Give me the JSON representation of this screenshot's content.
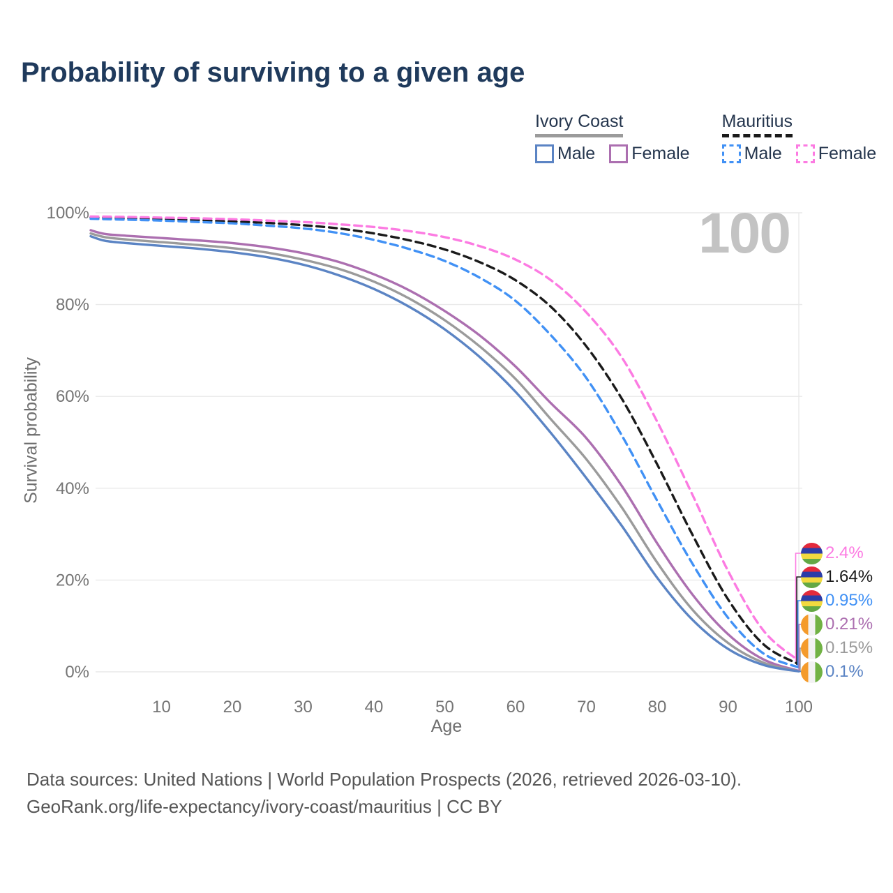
{
  "title": "Probability of surviving to a given age",
  "watermark": "100",
  "colors": {
    "title": "#1F3A5C",
    "legend_text": "#24354D",
    "tick": "#757575",
    "axis_title": "#6E6E6E",
    "grid": "#E9E9E9",
    "watermark": "#C3C3C3",
    "footer": "#565656",
    "ivory_coast_male": "#5B84C4",
    "ivory_coast_female": "#AC6FB0",
    "ivory_coast_both": "#9B9B9B",
    "mauritius_male": "#4191F5",
    "mauritius_female": "#FC7BE2",
    "mauritius_both": "#1A1A1A"
  },
  "legend": {
    "groups": [
      {
        "label": "Ivory Coast",
        "line_style": "solid",
        "underline_color": "#9B9B9B",
        "items": [
          {
            "label": "Male",
            "color": "#5B84C4",
            "dashed": false
          },
          {
            "label": "Female",
            "color": "#AC6FB0",
            "dashed": false
          }
        ]
      },
      {
        "label": "Mauritius",
        "line_style": "dashed",
        "underline_color": "#1A1A1A",
        "items": [
          {
            "label": "Male",
            "color": "#4191F5",
            "dashed": true
          },
          {
            "label": "Female",
            "color": "#FC7BE2",
            "dashed": true
          }
        ]
      }
    ]
  },
  "flags": {
    "mauritius": {
      "orientation": "horizontal",
      "colors": [
        "#E32A3C",
        "#2B3DA8",
        "#F2D93F",
        "#63A844"
      ]
    },
    "ivory_coast": {
      "orientation": "vertical",
      "colors": [
        "#F49B2B",
        "#F2F2F2",
        "#71B244"
      ]
    }
  },
  "chart_data": {
    "type": "line",
    "title": "Probability of surviving to a given age",
    "xlabel": "Age",
    "ylabel": "Survival probability",
    "xlim": [
      0,
      100
    ],
    "ylim": [
      0,
      100
    ],
    "grid": "horizontal, plus vertical line at age 100",
    "legend_position": "top-right",
    "x_ticks": [
      10,
      20,
      30,
      40,
      50,
      60,
      70,
      80,
      90,
      100
    ],
    "y_ticks": [
      "0%",
      "20%",
      "40%",
      "60%",
      "80%",
      "100%"
    ],
    "series": [
      {
        "id": "mauritius_both",
        "name": "Mauritius — Both sexes",
        "color": "#1A1A1A",
        "dashed": true,
        "end_label": "1.64%",
        "points": [
          [
            0,
            99.0
          ],
          [
            5,
            98.8
          ],
          [
            10,
            98.6
          ],
          [
            15,
            98.4
          ],
          [
            20,
            98.1
          ],
          [
            25,
            97.8
          ],
          [
            30,
            97.3
          ],
          [
            35,
            96.6
          ],
          [
            40,
            95.5
          ],
          [
            45,
            94.0
          ],
          [
            50,
            92.0
          ],
          [
            55,
            89.2
          ],
          [
            60,
            85.3
          ],
          [
            65,
            79.5
          ],
          [
            70,
            70.9
          ],
          [
            75,
            59.5
          ],
          [
            80,
            45.2
          ],
          [
            85,
            29.8
          ],
          [
            90,
            15.8
          ],
          [
            95,
            6.0
          ],
          [
            100,
            1.64
          ]
        ]
      },
      {
        "id": "mauritius_male",
        "name": "Mauritius — Male",
        "color": "#4191F5",
        "dashed": true,
        "end_label": "0.95%",
        "points": [
          [
            0,
            98.7
          ],
          [
            5,
            98.5
          ],
          [
            10,
            98.3
          ],
          [
            15,
            98.0
          ],
          [
            20,
            97.7
          ],
          [
            25,
            97.2
          ],
          [
            30,
            96.6
          ],
          [
            35,
            95.6
          ],
          [
            40,
            94.1
          ],
          [
            45,
            92.1
          ],
          [
            50,
            89.5
          ],
          [
            55,
            85.8
          ],
          [
            60,
            80.8
          ],
          [
            65,
            73.3
          ],
          [
            70,
            64.0
          ],
          [
            75,
            51.5
          ],
          [
            80,
            37.3
          ],
          [
            85,
            23.5
          ],
          [
            90,
            11.8
          ],
          [
            95,
            4.0
          ],
          [
            100,
            0.95
          ]
        ]
      },
      {
        "id": "mauritius_female",
        "name": "Mauritius — Female",
        "color": "#FC7BE2",
        "dashed": true,
        "end_label": "2.4%",
        "points": [
          [
            0,
            99.2
          ],
          [
            5,
            99.1
          ],
          [
            10,
            98.95
          ],
          [
            15,
            98.8
          ],
          [
            20,
            98.6
          ],
          [
            25,
            98.3
          ],
          [
            30,
            98.0
          ],
          [
            35,
            97.5
          ],
          [
            40,
            96.9
          ],
          [
            45,
            96.0
          ],
          [
            50,
            94.7
          ],
          [
            55,
            92.7
          ],
          [
            60,
            89.8
          ],
          [
            65,
            85.3
          ],
          [
            70,
            78.3
          ],
          [
            75,
            68.5
          ],
          [
            80,
            54.5
          ],
          [
            85,
            38.5
          ],
          [
            90,
            22.0
          ],
          [
            95,
            9.0
          ],
          [
            100,
            2.4
          ]
        ]
      },
      {
        "id": "ivory_coast_female",
        "name": "Ivory Coast — Female",
        "color": "#AC6FB0",
        "dashed": false,
        "end_label": "0.21%",
        "points": [
          [
            0,
            96.2
          ],
          [
            2,
            95.4
          ],
          [
            5,
            95.0
          ],
          [
            10,
            94.5
          ],
          [
            15,
            94.0
          ],
          [
            20,
            93.4
          ],
          [
            25,
            92.5
          ],
          [
            30,
            91.2
          ],
          [
            35,
            89.3
          ],
          [
            40,
            86.6
          ],
          [
            45,
            83.1
          ],
          [
            50,
            78.6
          ],
          [
            55,
            73.2
          ],
          [
            60,
            66.5
          ],
          [
            65,
            58.5
          ],
          [
            70,
            50.9
          ],
          [
            75,
            40.5
          ],
          [
            80,
            28.0
          ],
          [
            85,
            16.8
          ],
          [
            90,
            8.2
          ],
          [
            95,
            2.7
          ],
          [
            100,
            0.21
          ]
        ]
      },
      {
        "id": "ivory_coast_both",
        "name": "Ivory Coast — Both sexes",
        "color": "#9B9B9B",
        "dashed": false,
        "end_label": "0.15%",
        "points": [
          [
            0,
            95.5
          ],
          [
            2,
            94.7
          ],
          [
            5,
            94.2
          ],
          [
            10,
            93.6
          ],
          [
            15,
            93.0
          ],
          [
            20,
            92.3
          ],
          [
            25,
            91.3
          ],
          [
            30,
            89.8
          ],
          [
            35,
            87.8
          ],
          [
            40,
            85.0
          ],
          [
            45,
            81.3
          ],
          [
            50,
            76.6
          ],
          [
            55,
            70.8
          ],
          [
            60,
            63.8
          ],
          [
            65,
            55.0
          ],
          [
            70,
            46.3
          ],
          [
            75,
            35.8
          ],
          [
            80,
            23.8
          ],
          [
            85,
            13.5
          ],
          [
            90,
            6.3
          ],
          [
            95,
            2.0
          ],
          [
            100,
            0.15
          ]
        ]
      },
      {
        "id": "ivory_coast_male",
        "name": "Ivory Coast — Male",
        "color": "#5B84C4",
        "dashed": false,
        "end_label": "0.1%",
        "points": [
          [
            0,
            94.9
          ],
          [
            2,
            93.9
          ],
          [
            5,
            93.4
          ],
          [
            10,
            92.8
          ],
          [
            15,
            92.2
          ],
          [
            20,
            91.4
          ],
          [
            25,
            90.3
          ],
          [
            30,
            88.7
          ],
          [
            35,
            86.4
          ],
          [
            40,
            83.4
          ],
          [
            45,
            79.5
          ],
          [
            50,
            74.6
          ],
          [
            55,
            68.5
          ],
          [
            60,
            61.0
          ],
          [
            65,
            52.0
          ],
          [
            70,
            42.2
          ],
          [
            75,
            31.8
          ],
          [
            80,
            20.5
          ],
          [
            85,
            11.3
          ],
          [
            90,
            5.0
          ],
          [
            95,
            1.5
          ],
          [
            100,
            0.1
          ]
        ]
      }
    ]
  },
  "end_labels": [
    {
      "value": "2.4%",
      "color": "#FC7BE2",
      "flag": "mauritius",
      "series": "mauritius_female"
    },
    {
      "value": "1.64%",
      "color": "#1A1A1A",
      "flag": "mauritius",
      "series": "mauritius_both"
    },
    {
      "value": "0.95%",
      "color": "#4191F5",
      "flag": "mauritius",
      "series": "mauritius_male"
    },
    {
      "value": "0.21%",
      "color": "#AC6FB0",
      "flag": "ivory_coast",
      "series": "ivory_coast_female"
    },
    {
      "value": "0.15%",
      "color": "#9B9B9B",
      "flag": "ivory_coast",
      "series": "ivory_coast_both"
    },
    {
      "value": "0.1%",
      "color": "#5B84C4",
      "flag": "ivory_coast",
      "series": "ivory_coast_male"
    }
  ],
  "footer": {
    "line1": "Data sources: United Nations | World Population Prospects (2026, retrieved 2026-03-10).",
    "line2": "GeoRank.org/life-expectancy/ivory-coast/mauritius | CC BY"
  }
}
